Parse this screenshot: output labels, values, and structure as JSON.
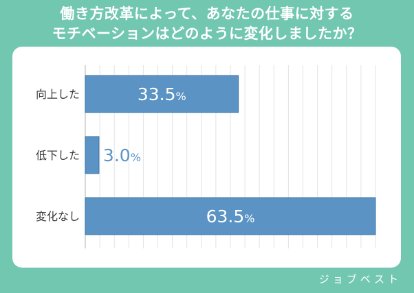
{
  "header": {
    "title_line1": "働き方改革によって、あなたの仕事に対する",
    "title_line2": "モチベーションはどのように変化しましたか？"
  },
  "brand": {
    "logo_text": "ジョブベスト"
  },
  "colors": {
    "background": "#72c7b1",
    "panel": "#ffffff",
    "bar": "#5a93c4",
    "bar_stroke": "#3f76a8",
    "grid": "#e3e3e3",
    "label_text": "#3a3a3a",
    "value_outside": "#5a93c4"
  },
  "chart_data": {
    "type": "bar",
    "orientation": "horizontal",
    "categories": [
      "向上した",
      "低下した",
      "変化なし"
    ],
    "values": [
      33.5,
      3.0,
      63.5
    ],
    "value_labels": [
      "33.5",
      "3.0",
      "63.5"
    ],
    "unit": "%",
    "xlim": [
      0,
      63.5
    ],
    "grid": true,
    "legend": "none"
  }
}
